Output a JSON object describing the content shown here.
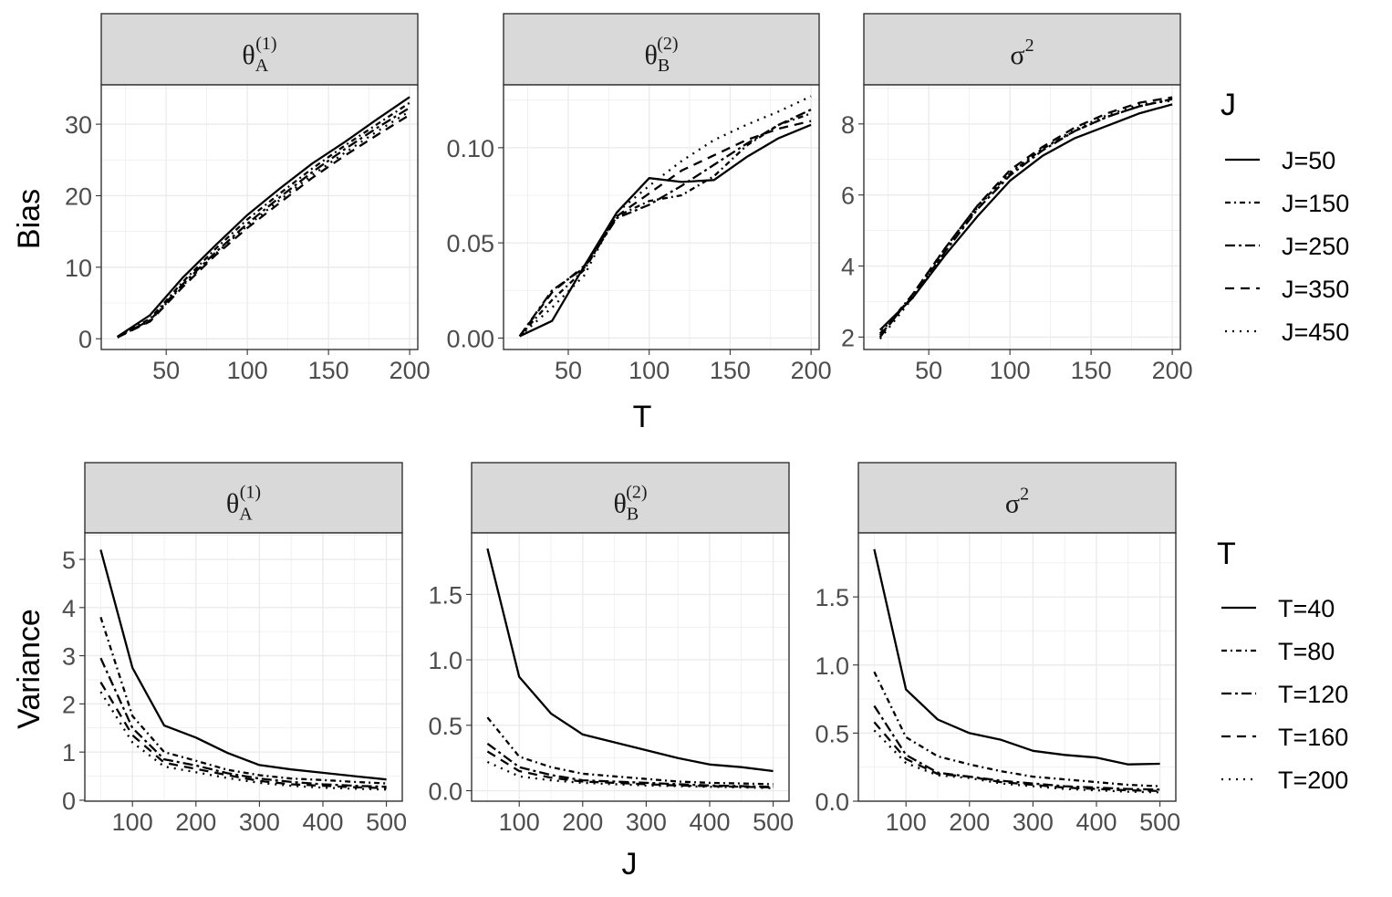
{
  "chart_data": [
    {
      "type": "line",
      "facet_label": "θ_A^(1)",
      "label_base": "θ",
      "label_sub": "A",
      "label_sup": "(1)",
      "xlabel": "T",
      "ylabel": "Bias",
      "xlim": [
        10,
        205
      ],
      "ylim": [
        -1.5,
        35.5
      ],
      "xticks": [
        50,
        100,
        150,
        200
      ],
      "yticks": [
        0,
        10,
        20,
        30
      ],
      "x": [
        20,
        40,
        60,
        80,
        100,
        120,
        140,
        160,
        180,
        200
      ],
      "legend_title": "J",
      "series": [
        {
          "name": "J=50",
          "dash": "solid",
          "values": [
            0.3,
            3.3,
            8.5,
            13.0,
            17.3,
            21.0,
            24.5,
            27.5,
            30.7,
            33.8
          ]
        },
        {
          "name": "J=150",
          "dash": "dashdot",
          "values": [
            0.3,
            2.8,
            7.9,
            12.5,
            16.7,
            20.3,
            23.8,
            27.0,
            30.0,
            33.0
          ]
        },
        {
          "name": "J=250",
          "dash": "twodash",
          "values": [
            0.2,
            2.6,
            7.6,
            12.0,
            16.1,
            19.8,
            23.3,
            26.5,
            29.5,
            32.3
          ]
        },
        {
          "name": "J=350",
          "dash": "dashed",
          "values": [
            0.2,
            2.4,
            7.2,
            11.6,
            15.5,
            19.0,
            22.5,
            25.6,
            28.5,
            31.3
          ]
        },
        {
          "name": "J=450",
          "dash": "dotted",
          "values": [
            0.2,
            2.5,
            7.4,
            11.8,
            15.8,
            19.4,
            22.9,
            26.0,
            29.0,
            31.8
          ]
        }
      ]
    },
    {
      "type": "line",
      "facet_label": "θ_B^(2)",
      "label_base": "θ",
      "label_sub": "B",
      "label_sup": "(2)",
      "xlabel": "T",
      "ylabel": "Bias",
      "xlim": [
        10,
        205
      ],
      "ylim": [
        -0.006,
        0.133
      ],
      "xticks": [
        50,
        100,
        150,
        200
      ],
      "yticks": [
        0.0,
        0.05,
        0.1
      ],
      "ytick_labels": [
        "0.00",
        "0.05",
        "0.10"
      ],
      "x": [
        20,
        40,
        60,
        80,
        100,
        120,
        140,
        160,
        180,
        200
      ],
      "legend_title": "J",
      "series": [
        {
          "name": "J=50",
          "dash": "solid",
          "values": [
            0.001,
            0.009,
            0.038,
            0.066,
            0.084,
            0.082,
            0.083,
            0.095,
            0.105,
            0.112
          ]
        },
        {
          "name": "J=150",
          "dash": "dashdot",
          "values": [
            0.001,
            0.02,
            0.036,
            0.064,
            0.072,
            0.075,
            0.085,
            0.101,
            0.112,
            0.118
          ]
        },
        {
          "name": "J=250",
          "dash": "twodash",
          "values": [
            0.001,
            0.025,
            0.037,
            0.063,
            0.07,
            0.08,
            0.091,
            0.102,
            0.112,
            0.12
          ]
        },
        {
          "name": "J=350",
          "dash": "dashed",
          "values": [
            0.001,
            0.024,
            0.038,
            0.064,
            0.076,
            0.088,
            0.096,
            0.104,
            0.11,
            0.114
          ]
        },
        {
          "name": "J=450",
          "dash": "dotted",
          "values": [
            0.001,
            0.016,
            0.033,
            0.066,
            0.08,
            0.093,
            0.104,
            0.112,
            0.119,
            0.127
          ]
        }
      ]
    },
    {
      "type": "line",
      "facet_label": "σ^2",
      "label_base": "σ",
      "label_sub": "",
      "label_sup": "2",
      "xlabel": "T",
      "ylabel": "Bias",
      "xlim": [
        10,
        205
      ],
      "ylim": [
        1.65,
        9.1
      ],
      "xticks": [
        50,
        100,
        150,
        200
      ],
      "yticks": [
        2,
        4,
        6,
        8
      ],
      "x": [
        20,
        40,
        60,
        80,
        100,
        120,
        140,
        160,
        180,
        200
      ],
      "legend_title": "J",
      "series": [
        {
          "name": "J=50",
          "dash": "solid",
          "values": [
            2.2,
            3.1,
            4.3,
            5.4,
            6.4,
            7.1,
            7.6,
            7.95,
            8.3,
            8.55
          ]
        },
        {
          "name": "J=150",
          "dash": "dashdot",
          "values": [
            2.1,
            3.2,
            4.5,
            5.7,
            6.6,
            7.3,
            7.8,
            8.2,
            8.5,
            8.7
          ]
        },
        {
          "name": "J=250",
          "dash": "twodash",
          "values": [
            2.05,
            3.15,
            4.4,
            5.6,
            6.55,
            7.25,
            7.8,
            8.2,
            8.5,
            8.7
          ]
        },
        {
          "name": "J=350",
          "dash": "dashed",
          "values": [
            2.0,
            3.2,
            4.5,
            5.7,
            6.7,
            7.35,
            7.9,
            8.3,
            8.6,
            8.75
          ]
        },
        {
          "name": "J=450",
          "dash": "dotted",
          "values": [
            1.95,
            3.1,
            4.4,
            5.65,
            6.65,
            7.3,
            7.85,
            8.25,
            8.55,
            8.65
          ]
        }
      ]
    },
    {
      "type": "line",
      "facet_label": "θ_A^(1)",
      "label_base": "θ",
      "label_sub": "A",
      "label_sup": "(1)",
      "xlabel": "J",
      "ylabel": "Variance",
      "xlim": [
        25,
        525
      ],
      "ylim": [
        -0.02,
        5.55
      ],
      "xticks": [
        100,
        200,
        300,
        400,
        500
      ],
      "yticks": [
        0,
        1,
        2,
        3,
        4,
        5
      ],
      "x": [
        50,
        100,
        150,
        200,
        250,
        300,
        350,
        400,
        450,
        500
      ],
      "legend_title": "T",
      "series": [
        {
          "name": "T=40",
          "dash": "solid",
          "values": [
            5.2,
            2.75,
            1.55,
            1.3,
            0.98,
            0.73,
            0.64,
            0.57,
            0.5,
            0.43
          ]
        },
        {
          "name": "T=80",
          "dash": "dashdot",
          "values": [
            3.8,
            1.75,
            1.0,
            0.82,
            0.63,
            0.52,
            0.45,
            0.42,
            0.38,
            0.35
          ]
        },
        {
          "name": "T=120",
          "dash": "twodash",
          "values": [
            2.95,
            1.5,
            0.85,
            0.72,
            0.56,
            0.45,
            0.38,
            0.33,
            0.3,
            0.28
          ]
        },
        {
          "name": "T=160",
          "dash": "dashed",
          "values": [
            2.45,
            1.35,
            0.78,
            0.65,
            0.52,
            0.4,
            0.33,
            0.3,
            0.27,
            0.25
          ]
        },
        {
          "name": "T=200",
          "dash": "dotted",
          "values": [
            2.25,
            1.2,
            0.7,
            0.58,
            0.46,
            0.36,
            0.3,
            0.26,
            0.24,
            0.22
          ]
        }
      ]
    },
    {
      "type": "line",
      "facet_label": "θ_B^(2)",
      "label_base": "θ",
      "label_sub": "B",
      "label_sup": "(2)",
      "xlabel": "J",
      "ylabel": "Variance",
      "xlim": [
        25,
        525
      ],
      "ylim": [
        -0.08,
        1.97
      ],
      "xticks": [
        100,
        200,
        300,
        400,
        500
      ],
      "yticks": [
        0.0,
        0.5,
        1.0,
        1.5
      ],
      "ytick_labels": [
        "0.0",
        "0.5",
        "1.0",
        "1.5"
      ],
      "x": [
        50,
        100,
        150,
        200,
        250,
        300,
        350,
        400,
        450,
        500
      ],
      "legend_title": "T",
      "series": [
        {
          "name": "T=40",
          "dash": "solid",
          "values": [
            1.85,
            0.87,
            0.59,
            0.43,
            0.37,
            0.31,
            0.25,
            0.2,
            0.18,
            0.15
          ]
        },
        {
          "name": "T=80",
          "dash": "dashdot",
          "values": [
            0.56,
            0.26,
            0.18,
            0.13,
            0.11,
            0.09,
            0.07,
            0.06,
            0.055,
            0.05
          ]
        },
        {
          "name": "T=120",
          "dash": "twodash",
          "values": [
            0.36,
            0.18,
            0.12,
            0.08,
            0.07,
            0.06,
            0.05,
            0.04,
            0.035,
            0.03
          ]
        },
        {
          "name": "T=160",
          "dash": "dashed",
          "values": [
            0.3,
            0.15,
            0.1,
            0.07,
            0.06,
            0.05,
            0.04,
            0.035,
            0.03,
            0.025
          ]
        },
        {
          "name": "T=200",
          "dash": "dotted",
          "values": [
            0.22,
            0.11,
            0.08,
            0.06,
            0.05,
            0.04,
            0.035,
            0.03,
            0.025,
            0.02
          ]
        }
      ]
    },
    {
      "type": "line",
      "facet_label": "σ^2",
      "label_base": "σ",
      "label_sub": "",
      "label_sup": "2",
      "xlabel": "J",
      "ylabel": "Variance",
      "xlim": [
        25,
        525
      ],
      "ylim": [
        0.0,
        1.97
      ],
      "xticks": [
        100,
        200,
        300,
        400,
        500
      ],
      "yticks": [
        0.0,
        0.5,
        1.0,
        1.5
      ],
      "ytick_labels": [
        "0.0",
        "0.5",
        "1.0",
        "1.5"
      ],
      "x": [
        50,
        100,
        150,
        200,
        250,
        300,
        350,
        400,
        450,
        500
      ],
      "legend_title": "T",
      "series": [
        {
          "name": "T=40",
          "dash": "solid",
          "values": [
            1.85,
            0.82,
            0.6,
            0.5,
            0.45,
            0.37,
            0.34,
            0.32,
            0.27,
            0.275
          ]
        },
        {
          "name": "T=80",
          "dash": "dashdot",
          "values": [
            0.95,
            0.47,
            0.33,
            0.27,
            0.22,
            0.18,
            0.16,
            0.14,
            0.12,
            0.11
          ]
        },
        {
          "name": "T=120",
          "dash": "twodash",
          "values": [
            0.7,
            0.34,
            0.21,
            0.18,
            0.15,
            0.13,
            0.11,
            0.1,
            0.09,
            0.085
          ]
        },
        {
          "name": "T=160",
          "dash": "dashed",
          "values": [
            0.58,
            0.31,
            0.2,
            0.18,
            0.14,
            0.12,
            0.1,
            0.09,
            0.08,
            0.075
          ]
        },
        {
          "name": "T=200",
          "dash": "dotted",
          "values": [
            0.52,
            0.28,
            0.19,
            0.17,
            0.13,
            0.11,
            0.09,
            0.08,
            0.07,
            0.065
          ]
        }
      ]
    }
  ],
  "legends": {
    "top": {
      "title": "J",
      "labels": [
        "J=50",
        "J=150",
        "J=250",
        "J=350",
        "J=450"
      ]
    },
    "bottom": {
      "title": "T",
      "labels": [
        "T=40",
        "T=80",
        "T=120",
        "T=160",
        "T=200"
      ]
    }
  },
  "axis_titles": {
    "top_x": "T",
    "top_y": "Bias",
    "bottom_x": "J",
    "bottom_y": "Variance"
  },
  "dash_styles": {
    "solid": "",
    "dashdot": "6,4,2,4",
    "twodash": "11,4,3,4",
    "dashed": "10,7",
    "dotted": "2,6"
  }
}
